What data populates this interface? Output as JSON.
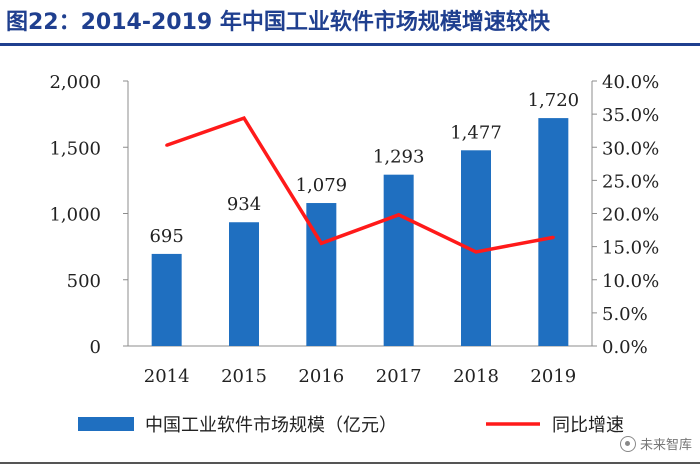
{
  "header": {
    "title": "图22：2014-2019 年中国工业软件市场规模增速较快"
  },
  "watermark": {
    "text": "未来智库",
    "icon": "wechat-icon"
  },
  "colors": {
    "bar": "#1f6fc0",
    "line": "#ff1a1a",
    "title": "#1f3f8f"
  },
  "chart_data": {
    "type": "bar",
    "title": "2014-2019 年中国工业软件市场规模增速较快",
    "categories": [
      "2014",
      "2015",
      "2016",
      "2017",
      "2018",
      "2019"
    ],
    "series": [
      {
        "name": "中国工业软件市场规模（亿元）",
        "type": "bar",
        "axis": "left",
        "values": [
          695,
          934,
          1079,
          1293,
          1477,
          1720
        ],
        "labels": [
          "695",
          "934",
          "1,079",
          "1,293",
          "1,477",
          "1,720"
        ]
      },
      {
        "name": "同比增速",
        "type": "line",
        "axis": "right",
        "values": [
          30.3,
          34.4,
          15.5,
          19.8,
          14.2,
          16.4
        ]
      }
    ],
    "y_left": {
      "range": [
        0,
        2000
      ],
      "ticks": [
        "0",
        "500",
        "1,000",
        "1,500",
        "2,000"
      ]
    },
    "y_right": {
      "range": [
        0,
        40
      ],
      "ticks": [
        "0.0%",
        "5.0%",
        "10.0%",
        "15.0%",
        "20.0%",
        "25.0%",
        "30.0%",
        "35.0%",
        "40.0%"
      ]
    },
    "legend": {
      "position": "bottom",
      "entries": [
        "中国工业软件市场规模（亿元）",
        "同比增速"
      ]
    },
    "grid": false
  }
}
